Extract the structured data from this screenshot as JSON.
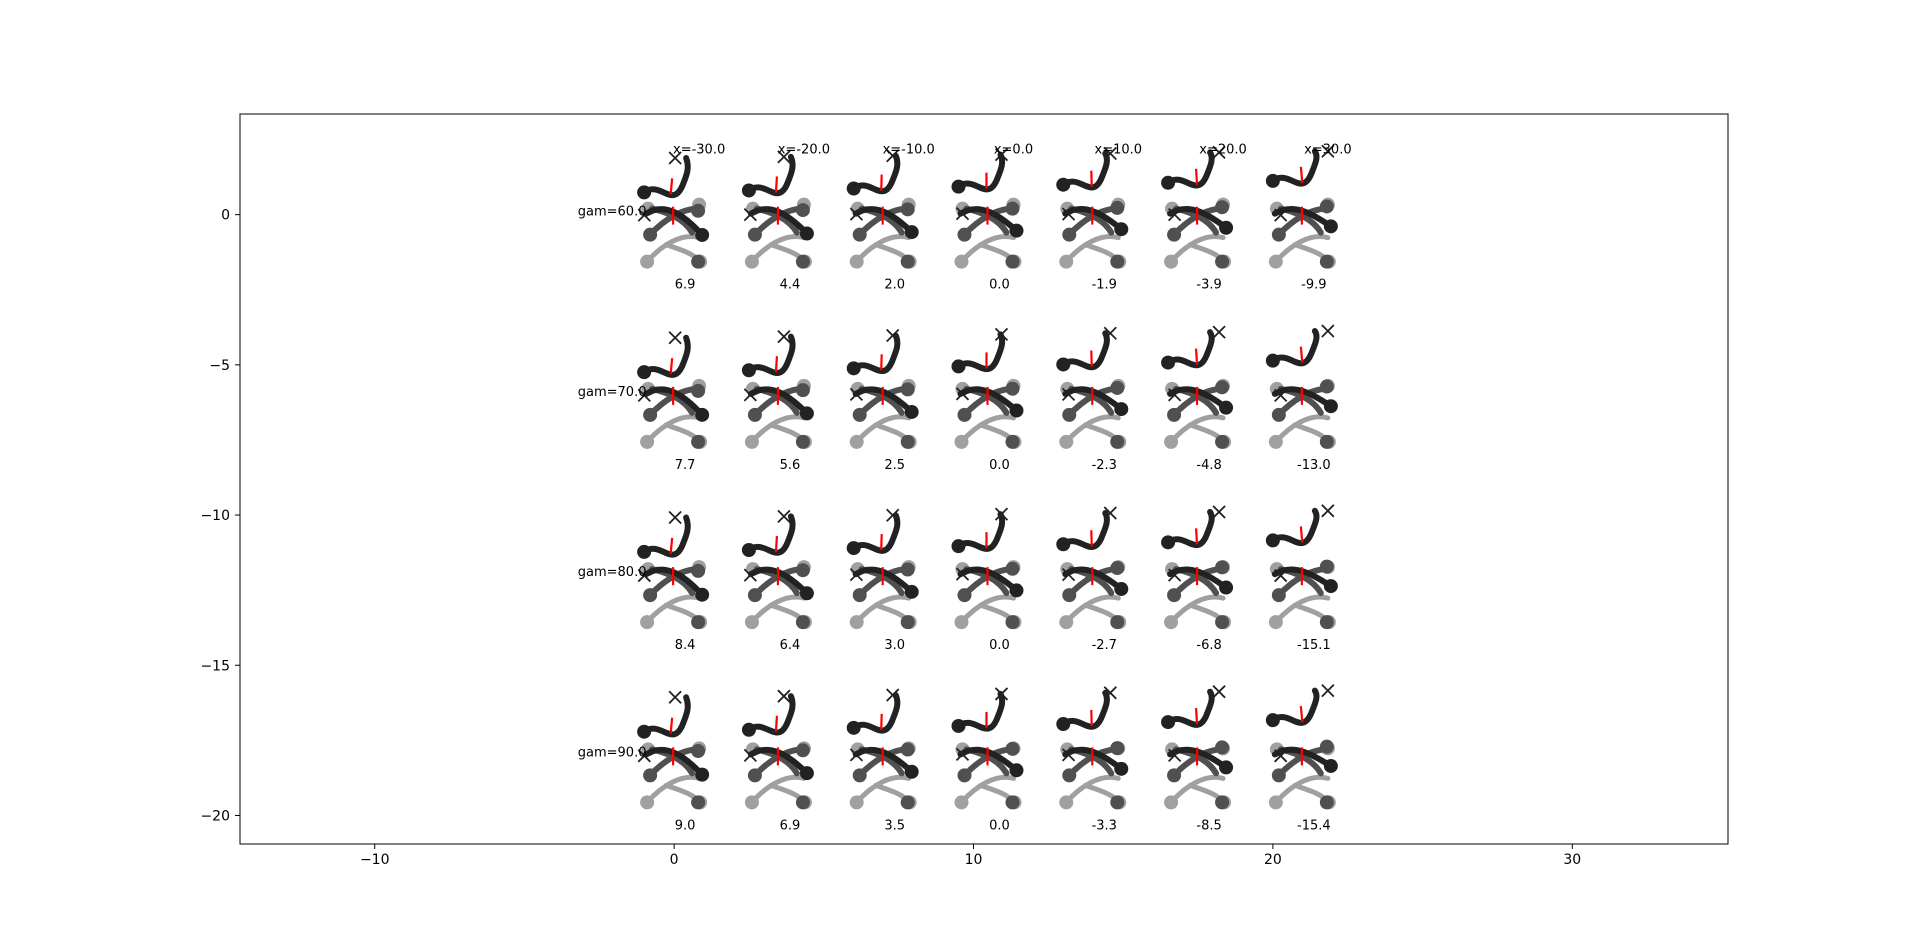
{
  "chart_data": {
    "type": "scatter",
    "title": "",
    "xlabel": "",
    "ylabel": "",
    "xlim": [
      -14.5,
      35.2
    ],
    "ylim": [
      -20.95,
      3.35
    ],
    "grid": false,
    "xticks": [
      {
        "value": -10,
        "label": "−10"
      },
      {
        "value": 0,
        "label": "0"
      },
      {
        "value": 10,
        "label": "10"
      },
      {
        "value": 20,
        "label": "20"
      },
      {
        "value": 30,
        "label": "30"
      }
    ],
    "yticks": [
      {
        "value": 0,
        "label": "0"
      },
      {
        "value": -5,
        "label": "−5"
      },
      {
        "value": -10,
        "label": "−10"
      },
      {
        "value": -15,
        "label": "−15"
      },
      {
        "value": -20,
        "label": "−20"
      }
    ],
    "column_titles": [
      {
        "x": -30,
        "label": "x=-30.0"
      },
      {
        "x": -20,
        "label": "x=-20.0"
      },
      {
        "x": -10,
        "label": "x=-10.0"
      },
      {
        "x": 0,
        "label": "x=0.0"
      },
      {
        "x": 10,
        "label": "x=10.0"
      },
      {
        "x": 20,
        "label": "x=20.0"
      },
      {
        "x": 30,
        "label": "x=30.0"
      }
    ],
    "row_labels": [
      {
        "gam": 60,
        "label": "gam=60.0"
      },
      {
        "gam": 70,
        "label": "gam=70.0"
      },
      {
        "gam": 80,
        "label": "gam=80.0"
      },
      {
        "gam": 90,
        "label": "gam=90.0"
      }
    ],
    "cell_values": [
      [
        "6.9",
        "4.4",
        "2.0",
        "0.0",
        "-1.9",
        "-3.9",
        "-9.9"
      ],
      [
        "7.7",
        "5.6",
        "2.5",
        "0.0",
        "-2.3",
        "-4.8",
        "-13.0"
      ],
      [
        "8.4",
        "6.4",
        "3.0",
        "0.0",
        "-2.7",
        "-6.8",
        "-15.1"
      ],
      [
        "9.0",
        "6.9",
        "3.5",
        "0.0",
        "-3.3",
        "-8.5",
        "-15.4"
      ]
    ],
    "grid_layout": {
      "col_centers_x": [
        0,
        3.5,
        7,
        10.5,
        14,
        17.5,
        21
      ],
      "row_centers_y": [
        0,
        -6,
        -12,
        -18
      ]
    },
    "colors": {
      "near_leg": "#222222",
      "mid_leg": "#505050",
      "far_leg": "#a0a0a0",
      "body_line": "#ff0000"
    }
  }
}
